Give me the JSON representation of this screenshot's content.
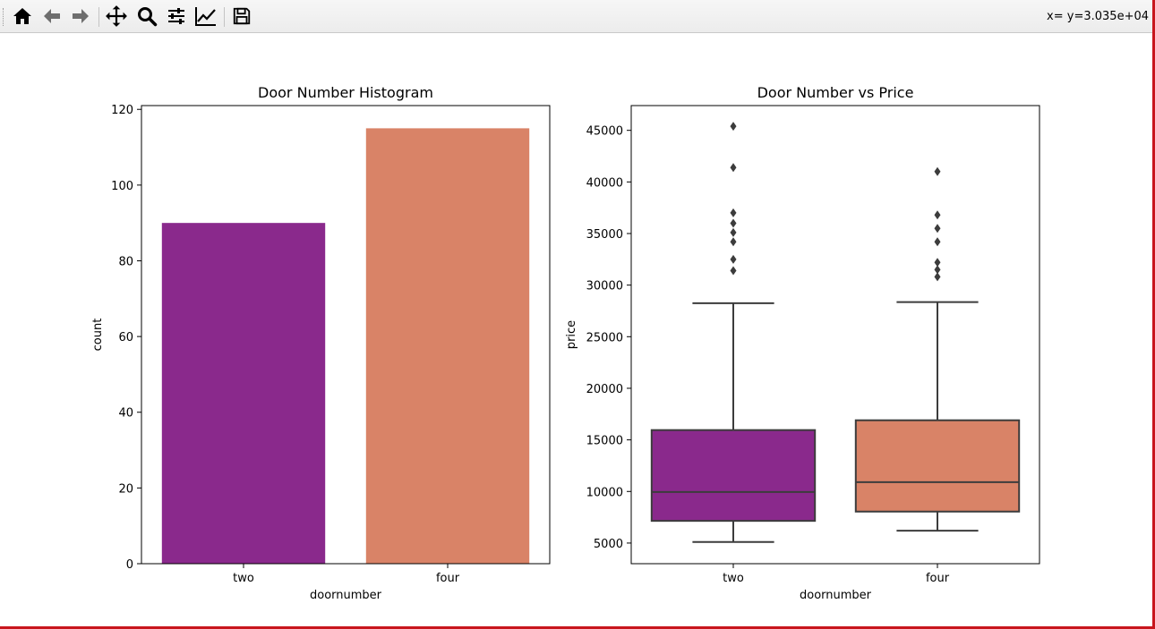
{
  "toolbar": {
    "buttons": [
      {
        "name": "home-button",
        "icon": "home-icon"
      },
      {
        "name": "back-button",
        "icon": "arrow-left-icon"
      },
      {
        "name": "forward-button",
        "icon": "arrow-right-icon"
      },
      {
        "name": "pan-button",
        "icon": "move-icon"
      },
      {
        "name": "zoom-button",
        "icon": "magnifier-icon"
      },
      {
        "name": "subplots-button",
        "icon": "sliders-icon"
      },
      {
        "name": "axes-button",
        "icon": "line-chart-icon"
      },
      {
        "name": "save-button",
        "icon": "floppy-disk-icon"
      }
    ],
    "coordinates": "x= y=3.035e+04"
  },
  "colors": {
    "two": "#8a298c",
    "four": "#d98367",
    "box_edge": "#3c3c3c"
  },
  "chart_data": [
    {
      "type": "bar",
      "title": "Door Number Histogram",
      "xlabel": "doornumber",
      "ylabel": "count",
      "categories": [
        "two",
        "four"
      ],
      "values": [
        90,
        115
      ],
      "ylim": [
        0,
        121
      ],
      "yticks": [
        0,
        20,
        40,
        60,
        80,
        100,
        120
      ],
      "grid": false
    },
    {
      "type": "box",
      "title": "Door Number vs Price",
      "xlabel": "doornumber",
      "ylabel": "price",
      "categories": [
        "two",
        "four"
      ],
      "ylim": [
        3000,
        47400
      ],
      "yticks": [
        5000,
        10000,
        15000,
        20000,
        25000,
        30000,
        35000,
        40000,
        45000
      ],
      "grid": false,
      "boxes": [
        {
          "category": "two",
          "whisker_low": 5100,
          "q1": 7150,
          "median": 9950,
          "q3": 15950,
          "whisker_high": 28250,
          "outliers": [
            31400,
            32500,
            34200,
            35100,
            36000,
            37000,
            41400,
            45400
          ]
        },
        {
          "category": "four",
          "whisker_low": 6200,
          "q1": 8050,
          "median": 10900,
          "q3": 16900,
          "whisker_high": 28350,
          "outliers": [
            30800,
            31500,
            32200,
            34200,
            35500,
            36800,
            41000
          ]
        }
      ]
    }
  ]
}
